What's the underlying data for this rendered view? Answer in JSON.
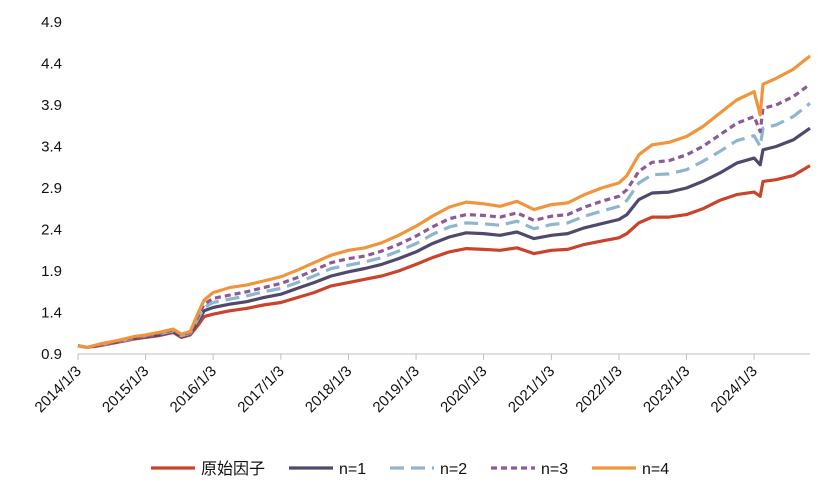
{
  "chart_data": {
    "type": "line",
    "title": "",
    "xlabel": "",
    "ylabel": "",
    "ylim": [
      0.9,
      4.9
    ],
    "yticks": [
      "0.9",
      "1.4",
      "1.9",
      "2.4",
      "2.9",
      "3.4",
      "3.9",
      "4.4",
      "4.9"
    ],
    "xticks": [
      "2014/1/3",
      "2015/1/3",
      "2016/1/3",
      "2017/1/3",
      "2018/1/3",
      "2019/1/3",
      "2020/1/3",
      "2021/1/3",
      "2022/1/3",
      "2023/1/3",
      "2024/1/3"
    ],
    "xlim": [
      "2014-01-03",
      "2024-10-31"
    ],
    "legend_position": "bottom",
    "series": [
      {
        "name": "原始因子",
        "color": "#c9442a",
        "dash": "solid",
        "points": [
          [
            "2014-01-03",
            1.0
          ],
          [
            "2014-02-20",
            0.98
          ],
          [
            "2014-05-01",
            1.0
          ],
          [
            "2014-08-01",
            1.04
          ],
          [
            "2014-11-01",
            1.08
          ],
          [
            "2015-01-03",
            1.1
          ],
          [
            "2015-03-15",
            1.12
          ],
          [
            "2015-06-01",
            1.16
          ],
          [
            "2015-07-15",
            1.1
          ],
          [
            "2015-09-01",
            1.13
          ],
          [
            "2015-10-15",
            1.25
          ],
          [
            "2015-11-15",
            1.35
          ],
          [
            "2016-01-03",
            1.38
          ],
          [
            "2016-04-01",
            1.42
          ],
          [
            "2016-07-01",
            1.45
          ],
          [
            "2016-10-01",
            1.49
          ],
          [
            "2017-01-03",
            1.52
          ],
          [
            "2017-04-01",
            1.58
          ],
          [
            "2017-07-01",
            1.64
          ],
          [
            "2017-10-01",
            1.72
          ],
          [
            "2018-01-03",
            1.76
          ],
          [
            "2018-04-01",
            1.8
          ],
          [
            "2018-07-01",
            1.84
          ],
          [
            "2018-10-01",
            1.9
          ],
          [
            "2019-01-03",
            1.98
          ],
          [
            "2019-04-01",
            2.06
          ],
          [
            "2019-07-01",
            2.13
          ],
          [
            "2019-10-01",
            2.17
          ],
          [
            "2020-01-03",
            2.16
          ],
          [
            "2020-04-01",
            2.15
          ],
          [
            "2020-07-01",
            2.18
          ],
          [
            "2020-10-01",
            2.11
          ],
          [
            "2021-01-03",
            2.15
          ],
          [
            "2021-04-01",
            2.16
          ],
          [
            "2021-07-01",
            2.22
          ],
          [
            "2021-10-01",
            2.26
          ],
          [
            "2022-01-03",
            2.3
          ],
          [
            "2022-02-15",
            2.35
          ],
          [
            "2022-04-20",
            2.48
          ],
          [
            "2022-07-01",
            2.55
          ],
          [
            "2022-10-01",
            2.55
          ],
          [
            "2023-01-03",
            2.58
          ],
          [
            "2023-04-01",
            2.65
          ],
          [
            "2023-07-01",
            2.75
          ],
          [
            "2023-10-01",
            2.82
          ],
          [
            "2024-01-03",
            2.85
          ],
          [
            "2024-02-05",
            2.8
          ],
          [
            "2024-02-20",
            2.98
          ],
          [
            "2024-05-01",
            3.0
          ],
          [
            "2024-08-01",
            3.05
          ],
          [
            "2024-10-31",
            3.17
          ]
        ]
      },
      {
        "name": "n=1",
        "color": "#4f4a6b",
        "dash": "solid",
        "points": [
          [
            "2014-01-03",
            1.0
          ],
          [
            "2014-02-20",
            0.98
          ],
          [
            "2014-05-01",
            1.01
          ],
          [
            "2014-08-01",
            1.05
          ],
          [
            "2014-11-01",
            1.09
          ],
          [
            "2015-01-03",
            1.11
          ],
          [
            "2015-03-15",
            1.13
          ],
          [
            "2015-06-01",
            1.17
          ],
          [
            "2015-07-15",
            1.11
          ],
          [
            "2015-09-01",
            1.14
          ],
          [
            "2015-10-15",
            1.3
          ],
          [
            "2015-11-15",
            1.42
          ],
          [
            "2016-01-03",
            1.46
          ],
          [
            "2016-04-01",
            1.5
          ],
          [
            "2016-07-01",
            1.53
          ],
          [
            "2016-10-01",
            1.58
          ],
          [
            "2017-01-03",
            1.62
          ],
          [
            "2017-04-01",
            1.69
          ],
          [
            "2017-07-01",
            1.76
          ],
          [
            "2017-10-01",
            1.84
          ],
          [
            "2018-01-03",
            1.89
          ],
          [
            "2018-04-01",
            1.93
          ],
          [
            "2018-07-01",
            1.98
          ],
          [
            "2018-10-01",
            2.05
          ],
          [
            "2019-01-03",
            2.13
          ],
          [
            "2019-04-01",
            2.23
          ],
          [
            "2019-07-01",
            2.31
          ],
          [
            "2019-10-01",
            2.36
          ],
          [
            "2020-01-03",
            2.35
          ],
          [
            "2020-04-01",
            2.33
          ],
          [
            "2020-07-01",
            2.37
          ],
          [
            "2020-10-01",
            2.29
          ],
          [
            "2021-01-03",
            2.33
          ],
          [
            "2021-04-01",
            2.35
          ],
          [
            "2021-07-01",
            2.42
          ],
          [
            "2021-10-01",
            2.47
          ],
          [
            "2022-01-03",
            2.52
          ],
          [
            "2022-02-15",
            2.58
          ],
          [
            "2022-04-20",
            2.76
          ],
          [
            "2022-07-01",
            2.84
          ],
          [
            "2022-10-01",
            2.85
          ],
          [
            "2023-01-03",
            2.9
          ],
          [
            "2023-04-01",
            2.98
          ],
          [
            "2023-07-01",
            3.08
          ],
          [
            "2023-10-01",
            3.2
          ],
          [
            "2024-01-03",
            3.26
          ],
          [
            "2024-02-05",
            3.18
          ],
          [
            "2024-02-20",
            3.36
          ],
          [
            "2024-05-01",
            3.4
          ],
          [
            "2024-08-01",
            3.48
          ],
          [
            "2024-10-31",
            3.62
          ]
        ]
      },
      {
        "name": "n=2",
        "color": "#8fb5cf",
        "dash": "long",
        "points": [
          [
            "2014-01-03",
            1.0
          ],
          [
            "2014-02-20",
            0.98
          ],
          [
            "2014-05-01",
            1.01
          ],
          [
            "2014-08-01",
            1.05
          ],
          [
            "2014-11-01",
            1.09
          ],
          [
            "2015-01-03",
            1.12
          ],
          [
            "2015-03-15",
            1.14
          ],
          [
            "2015-06-01",
            1.18
          ],
          [
            "2015-07-15",
            1.12
          ],
          [
            "2015-09-01",
            1.15
          ],
          [
            "2015-10-15",
            1.33
          ],
          [
            "2015-11-15",
            1.46
          ],
          [
            "2016-01-03",
            1.52
          ],
          [
            "2016-04-01",
            1.56
          ],
          [
            "2016-07-01",
            1.6
          ],
          [
            "2016-10-01",
            1.65
          ],
          [
            "2017-01-03",
            1.69
          ],
          [
            "2017-04-01",
            1.76
          ],
          [
            "2017-07-01",
            1.84
          ],
          [
            "2017-10-01",
            1.93
          ],
          [
            "2018-01-03",
            1.97
          ],
          [
            "2018-04-01",
            2.01
          ],
          [
            "2018-07-01",
            2.06
          ],
          [
            "2018-10-01",
            2.14
          ],
          [
            "2019-01-03",
            2.23
          ],
          [
            "2019-04-01",
            2.34
          ],
          [
            "2019-07-01",
            2.43
          ],
          [
            "2019-10-01",
            2.48
          ],
          [
            "2020-01-03",
            2.47
          ],
          [
            "2020-04-01",
            2.45
          ],
          [
            "2020-07-01",
            2.5
          ],
          [
            "2020-10-01",
            2.41
          ],
          [
            "2021-01-03",
            2.46
          ],
          [
            "2021-04-01",
            2.48
          ],
          [
            "2021-07-01",
            2.56
          ],
          [
            "2021-10-01",
            2.62
          ],
          [
            "2022-01-03",
            2.68
          ],
          [
            "2022-02-15",
            2.75
          ],
          [
            "2022-04-20",
            2.96
          ],
          [
            "2022-07-01",
            3.06
          ],
          [
            "2022-10-01",
            3.07
          ],
          [
            "2023-01-03",
            3.12
          ],
          [
            "2023-04-01",
            3.22
          ],
          [
            "2023-07-01",
            3.34
          ],
          [
            "2023-10-01",
            3.47
          ],
          [
            "2024-01-03",
            3.53
          ],
          [
            "2024-02-05",
            3.4
          ],
          [
            "2024-02-20",
            3.62
          ],
          [
            "2024-05-01",
            3.66
          ],
          [
            "2024-08-01",
            3.76
          ],
          [
            "2024-10-31",
            3.92
          ]
        ]
      },
      {
        "name": "n=3",
        "color": "#8c5a98",
        "dash": "short",
        "points": [
          [
            "2014-01-03",
            1.0
          ],
          [
            "2014-02-20",
            0.98
          ],
          [
            "2014-05-01",
            1.01
          ],
          [
            "2014-08-01",
            1.05
          ],
          [
            "2014-11-01",
            1.1
          ],
          [
            "2015-01-03",
            1.12
          ],
          [
            "2015-03-15",
            1.15
          ],
          [
            "2015-06-01",
            1.19
          ],
          [
            "2015-07-15",
            1.13
          ],
          [
            "2015-09-01",
            1.16
          ],
          [
            "2015-10-15",
            1.36
          ],
          [
            "2015-11-15",
            1.5
          ],
          [
            "2016-01-03",
            1.57
          ],
          [
            "2016-04-01",
            1.61
          ],
          [
            "2016-07-01",
            1.65
          ],
          [
            "2016-10-01",
            1.7
          ],
          [
            "2017-01-03",
            1.75
          ],
          [
            "2017-04-01",
            1.82
          ],
          [
            "2017-07-01",
            1.91
          ],
          [
            "2017-10-01",
            2.0
          ],
          [
            "2018-01-03",
            2.05
          ],
          [
            "2018-04-01",
            2.08
          ],
          [
            "2018-07-01",
            2.14
          ],
          [
            "2018-10-01",
            2.22
          ],
          [
            "2019-01-03",
            2.32
          ],
          [
            "2019-04-01",
            2.43
          ],
          [
            "2019-07-01",
            2.53
          ],
          [
            "2019-10-01",
            2.58
          ],
          [
            "2020-01-03",
            2.57
          ],
          [
            "2020-04-01",
            2.55
          ],
          [
            "2020-07-01",
            2.6
          ],
          [
            "2020-10-01",
            2.51
          ],
          [
            "2021-01-03",
            2.56
          ],
          [
            "2021-04-01",
            2.58
          ],
          [
            "2021-07-01",
            2.67
          ],
          [
            "2021-10-01",
            2.74
          ],
          [
            "2022-01-03",
            2.8
          ],
          [
            "2022-02-15",
            2.88
          ],
          [
            "2022-04-20",
            3.1
          ],
          [
            "2022-07-01",
            3.21
          ],
          [
            "2022-10-01",
            3.23
          ],
          [
            "2023-01-03",
            3.3
          ],
          [
            "2023-04-01",
            3.4
          ],
          [
            "2023-07-01",
            3.54
          ],
          [
            "2023-10-01",
            3.68
          ],
          [
            "2024-01-03",
            3.76
          ],
          [
            "2024-02-05",
            3.58
          ],
          [
            "2024-02-20",
            3.86
          ],
          [
            "2024-05-01",
            3.9
          ],
          [
            "2024-08-01",
            4.0
          ],
          [
            "2024-10-31",
            4.15
          ]
        ]
      },
      {
        "name": "n=4",
        "color": "#f0953c",
        "dash": "solid",
        "points": [
          [
            "2014-01-03",
            1.0
          ],
          [
            "2014-02-20",
            0.98
          ],
          [
            "2014-05-01",
            1.02
          ],
          [
            "2014-08-01",
            1.06
          ],
          [
            "2014-11-01",
            1.11
          ],
          [
            "2015-01-03",
            1.13
          ],
          [
            "2015-03-15",
            1.16
          ],
          [
            "2015-06-01",
            1.2
          ],
          [
            "2015-07-15",
            1.14
          ],
          [
            "2015-09-01",
            1.17
          ],
          [
            "2015-10-15",
            1.4
          ],
          [
            "2015-11-15",
            1.55
          ],
          [
            "2016-01-03",
            1.64
          ],
          [
            "2016-04-01",
            1.7
          ],
          [
            "2016-07-01",
            1.73
          ],
          [
            "2016-10-01",
            1.78
          ],
          [
            "2017-01-03",
            1.83
          ],
          [
            "2017-04-01",
            1.91
          ],
          [
            "2017-07-01",
            2.0
          ],
          [
            "2017-10-01",
            2.09
          ],
          [
            "2018-01-03",
            2.15
          ],
          [
            "2018-04-01",
            2.18
          ],
          [
            "2018-07-01",
            2.24
          ],
          [
            "2018-10-01",
            2.33
          ],
          [
            "2019-01-03",
            2.44
          ],
          [
            "2019-04-01",
            2.56
          ],
          [
            "2019-07-01",
            2.67
          ],
          [
            "2019-10-01",
            2.73
          ],
          [
            "2020-01-03",
            2.71
          ],
          [
            "2020-04-01",
            2.68
          ],
          [
            "2020-07-01",
            2.74
          ],
          [
            "2020-10-01",
            2.64
          ],
          [
            "2021-01-03",
            2.7
          ],
          [
            "2021-04-01",
            2.72
          ],
          [
            "2021-07-01",
            2.82
          ],
          [
            "2021-10-01",
            2.9
          ],
          [
            "2022-01-03",
            2.96
          ],
          [
            "2022-02-15",
            3.05
          ],
          [
            "2022-04-20",
            3.3
          ],
          [
            "2022-07-01",
            3.42
          ],
          [
            "2022-10-01",
            3.45
          ],
          [
            "2023-01-03",
            3.52
          ],
          [
            "2023-04-01",
            3.64
          ],
          [
            "2023-07-01",
            3.8
          ],
          [
            "2023-10-01",
            3.96
          ],
          [
            "2024-01-03",
            4.06
          ],
          [
            "2024-02-05",
            3.78
          ],
          [
            "2024-02-20",
            4.15
          ],
          [
            "2024-05-01",
            4.22
          ],
          [
            "2024-08-01",
            4.33
          ],
          [
            "2024-10-31",
            4.49
          ]
        ]
      }
    ]
  }
}
